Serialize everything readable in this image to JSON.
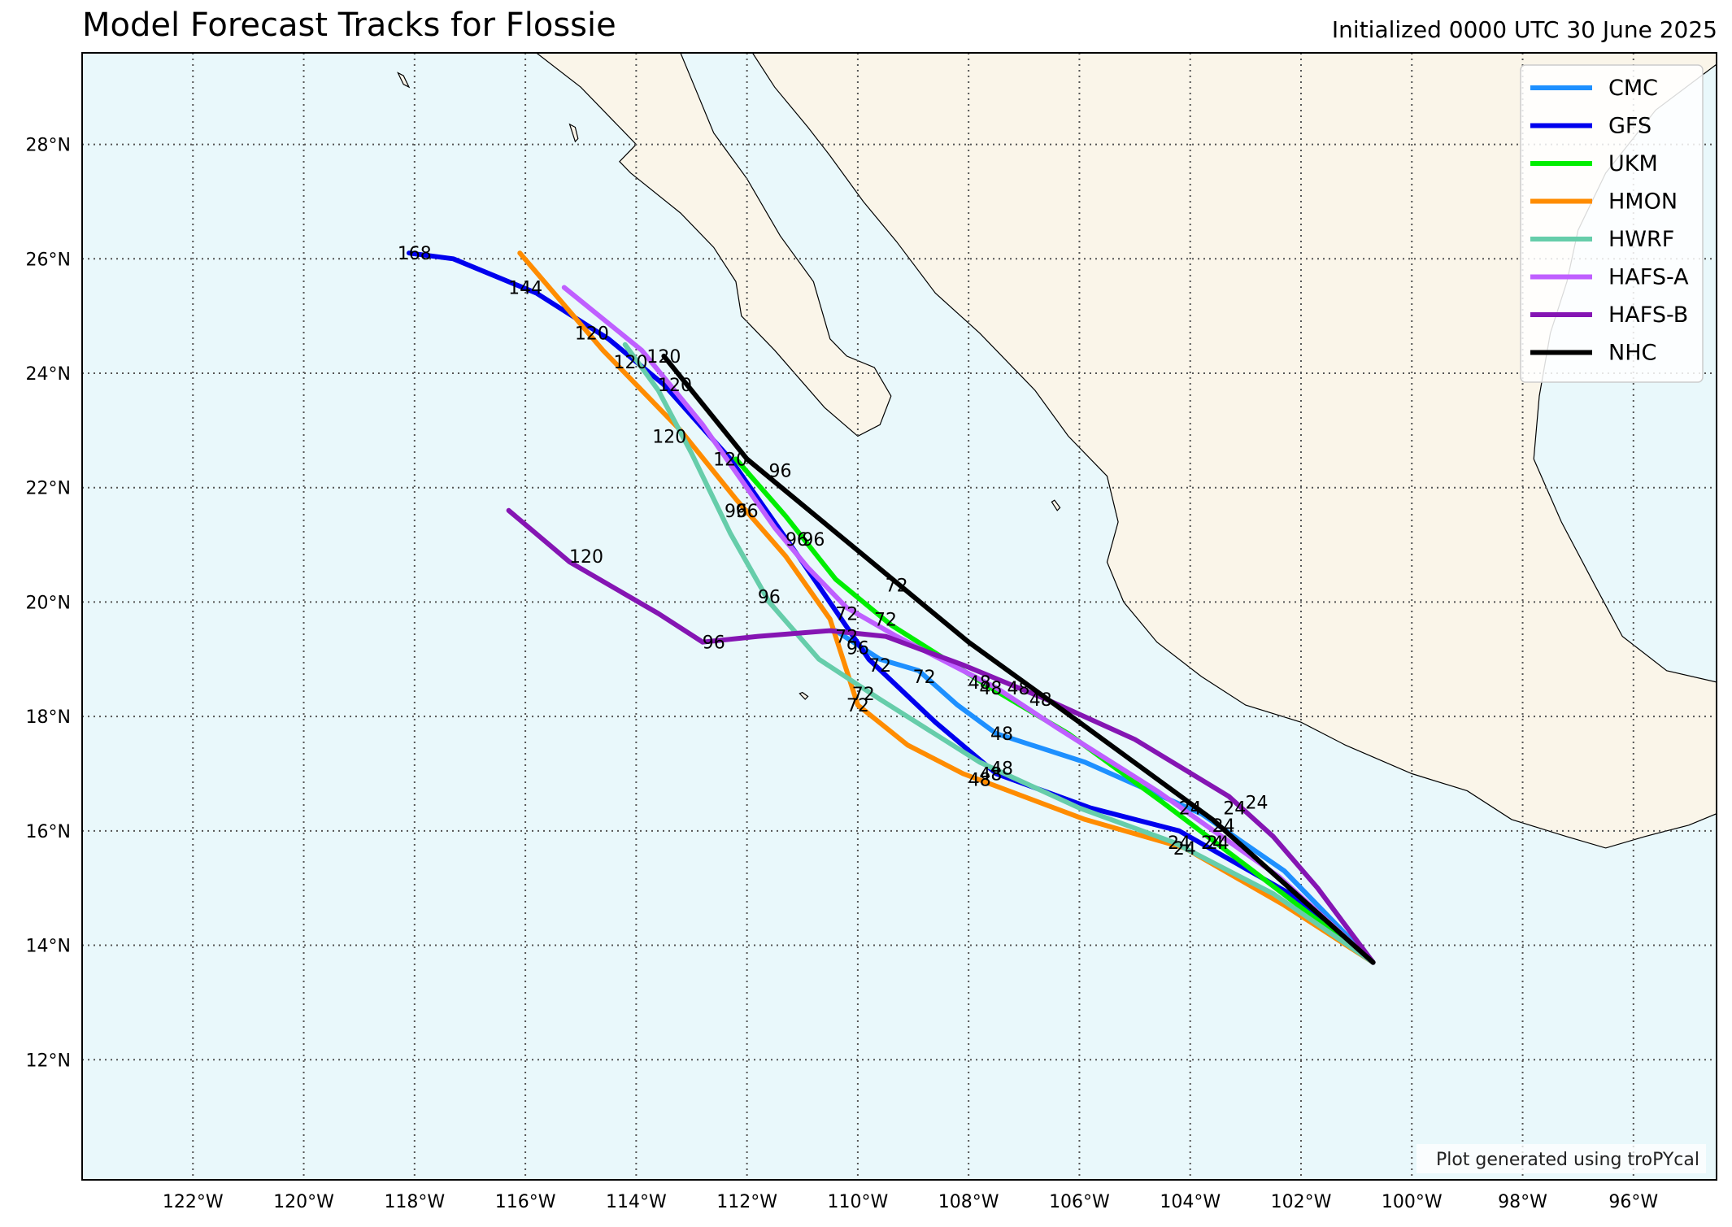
{
  "title": "Model Forecast Tracks for Flossie",
  "subtitle": "Initialized 0000 UTC 30 June 2025",
  "credit": "Plot generated using troPYcal",
  "colors": {
    "ocean": "#e9f8fb",
    "land": "#faf5e9",
    "grid": "#555555"
  },
  "map": {
    "lon_range": [
      -124.0,
      -94.5
    ],
    "lat_range": [
      9.9,
      29.6
    ],
    "lon_ticks": [
      {
        "value": -122,
        "label": "122°W"
      },
      {
        "value": -120,
        "label": "120°W"
      },
      {
        "value": -118,
        "label": "118°W"
      },
      {
        "value": -116,
        "label": "116°W"
      },
      {
        "value": -114,
        "label": "114°W"
      },
      {
        "value": -112,
        "label": "112°W"
      },
      {
        "value": -110,
        "label": "110°W"
      },
      {
        "value": -108,
        "label": "108°W"
      },
      {
        "value": -106,
        "label": "106°W"
      },
      {
        "value": -104,
        "label": "104°W"
      },
      {
        "value": -102,
        "label": "102°W"
      },
      {
        "value": -100,
        "label": "100°W"
      },
      {
        "value": -98,
        "label": "98°W"
      },
      {
        "value": -96,
        "label": "96°W"
      }
    ],
    "lat_ticks": [
      {
        "value": 12,
        "label": "12°N"
      },
      {
        "value": 14,
        "label": "14°N"
      },
      {
        "value": 16,
        "label": "16°N"
      },
      {
        "value": 18,
        "label": "18°N"
      },
      {
        "value": 20,
        "label": "20°N"
      },
      {
        "value": 22,
        "label": "22°N"
      },
      {
        "value": 24,
        "label": "24°N"
      },
      {
        "value": 26,
        "label": "26°N"
      },
      {
        "value": 28,
        "label": "28°N"
      }
    ],
    "legend_position": "top-right",
    "land_polygons": [
      [
        [
          -115.8,
          29.6
        ],
        [
          -115.0,
          29.0
        ],
        [
          -114.4,
          28.4
        ],
        [
          -114.0,
          28.0
        ],
        [
          -114.3,
          27.7
        ],
        [
          -114.1,
          27.5
        ],
        [
          -113.2,
          26.8
        ],
        [
          -112.6,
          26.2
        ],
        [
          -112.2,
          25.6
        ],
        [
          -112.1,
          25.0
        ],
        [
          -111.5,
          24.4
        ],
        [
          -110.6,
          23.4
        ],
        [
          -110.0,
          22.9
        ],
        [
          -109.6,
          23.1
        ],
        [
          -109.4,
          23.6
        ],
        [
          -109.7,
          24.1
        ],
        [
          -110.2,
          24.3
        ],
        [
          -110.5,
          24.6
        ],
        [
          -110.8,
          25.6
        ],
        [
          -111.4,
          26.4
        ],
        [
          -112.0,
          27.4
        ],
        [
          -112.6,
          28.2
        ],
        [
          -112.9,
          28.9
        ],
        [
          -113.2,
          29.6
        ]
      ],
      [
        [
          -111.9,
          29.6
        ],
        [
          -111.5,
          29.0
        ],
        [
          -110.9,
          28.3
        ],
        [
          -110.5,
          27.8
        ],
        [
          -109.9,
          27.0
        ],
        [
          -109.3,
          26.3
        ],
        [
          -108.6,
          25.4
        ],
        [
          -107.8,
          24.7
        ],
        [
          -106.8,
          23.7
        ],
        [
          -106.2,
          22.9
        ],
        [
          -105.5,
          22.2
        ],
        [
          -105.3,
          21.4
        ],
        [
          -105.5,
          20.7
        ],
        [
          -105.2,
          20.0
        ],
        [
          -104.6,
          19.3
        ],
        [
          -103.8,
          18.7
        ],
        [
          -103.0,
          18.2
        ],
        [
          -102.0,
          17.9
        ],
        [
          -101.2,
          17.5
        ],
        [
          -100.0,
          17.0
        ],
        [
          -99.0,
          16.7
        ],
        [
          -98.2,
          16.2
        ],
        [
          -97.2,
          15.9
        ],
        [
          -96.5,
          15.7
        ],
        [
          -95.8,
          15.9
        ],
        [
          -95.0,
          16.1
        ],
        [
          -94.5,
          16.3
        ],
        [
          -94.5,
          18.6
        ],
        [
          -95.4,
          18.8
        ],
        [
          -96.2,
          19.4
        ],
        [
          -96.7,
          20.3
        ],
        [
          -97.3,
          21.4
        ],
        [
          -97.8,
          22.5
        ],
        [
          -97.7,
          23.6
        ],
        [
          -97.5,
          24.7
        ],
        [
          -97.2,
          25.6
        ],
        [
          -97.0,
          26.5
        ],
        [
          -96.5,
          27.5
        ],
        [
          -95.6,
          28.6
        ],
        [
          -94.5,
          29.4
        ],
        [
          -94.5,
          29.6
        ]
      ]
    ],
    "islands": [
      [
        [
          -118.3,
          29.25
        ],
        [
          -118.2,
          29.05
        ],
        [
          -118.1,
          29.0
        ],
        [
          -118.2,
          29.2
        ]
      ],
      [
        [
          -115.2,
          28.35
        ],
        [
          -115.1,
          28.05
        ],
        [
          -115.05,
          28.1
        ],
        [
          -115.1,
          28.3
        ]
      ],
      [
        [
          -106.5,
          21.75
        ],
        [
          -106.4,
          21.6
        ],
        [
          -106.35,
          21.65
        ],
        [
          -106.45,
          21.78
        ]
      ],
      [
        [
          -111.05,
          18.4
        ],
        [
          -110.95,
          18.3
        ],
        [
          -110.9,
          18.35
        ],
        [
          -111.0,
          18.42
        ]
      ]
    ]
  },
  "legend": [
    {
      "name": "CMC",
      "color": "#1e90ff"
    },
    {
      "name": "GFS",
      "color": "#0000ee"
    },
    {
      "name": "UKM",
      "color": "#00ee00"
    },
    {
      "name": "HMON",
      "color": "#ff8c00"
    },
    {
      "name": "HWRF",
      "color": "#66cdaa"
    },
    {
      "name": "HAFS-A",
      "color": "#bf5fff"
    },
    {
      "name": "HAFS-B",
      "color": "#8515b3"
    },
    {
      "name": "NHC",
      "color": "#000000"
    }
  ],
  "chart_data": {
    "type": "map",
    "x_unit": "longitude (degrees, negative = W)",
    "y_unit": "latitude (degrees N)",
    "series": [
      {
        "name": "CMC",
        "color": "#1e90ff",
        "points": [
          [
            -100.7,
            13.7
          ],
          [
            -102.3,
            15.3
          ],
          [
            -103.8,
            16.3
          ],
          [
            -105.9,
            17.2
          ],
          [
            -107.5,
            17.7
          ],
          [
            -108.2,
            18.2
          ],
          [
            -108.9,
            18.8
          ],
          [
            -109.6,
            19.0
          ],
          [
            -110.4,
            19.5
          ]
        ],
        "labels": [
          {
            "text": "24",
            "lon": -103.6,
            "lat": 15.8
          },
          {
            "text": "48",
            "lon": -107.4,
            "lat": 17.7
          },
          {
            "text": "72",
            "lon": -108.8,
            "lat": 18.7
          },
          {
            "text": "96",
            "lon": -110.0,
            "lat": 19.2
          }
        ]
      },
      {
        "name": "GFS",
        "color": "#0000ee",
        "points": [
          [
            -100.7,
            13.7
          ],
          [
            -102.2,
            14.9
          ],
          [
            -104.2,
            16.0
          ],
          [
            -105.8,
            16.4
          ],
          [
            -107.5,
            17.0
          ],
          [
            -108.6,
            17.9
          ],
          [
            -109.8,
            19.0
          ],
          [
            -111.0,
            20.7
          ],
          [
            -112.3,
            22.5
          ],
          [
            -113.5,
            23.8
          ],
          [
            -114.5,
            24.6
          ],
          [
            -115.8,
            25.4
          ],
          [
            -117.3,
            26.0
          ],
          [
            -118.1,
            26.1
          ]
        ],
        "labels": [
          {
            "text": "24",
            "lon": -104.0,
            "lat": 16.4
          },
          {
            "text": "48",
            "lon": -107.4,
            "lat": 17.1
          },
          {
            "text": "72",
            "lon": -109.6,
            "lat": 18.9
          },
          {
            "text": "96",
            "lon": -111.1,
            "lat": 21.1
          },
          {
            "text": "120",
            "lon": -113.3,
            "lat": 23.8
          },
          {
            "text": "144",
            "lon": -116.0,
            "lat": 25.5
          },
          {
            "text": "168",
            "lon": -118.0,
            "lat": 26.1
          }
        ]
      },
      {
        "name": "UKM",
        "color": "#00ee00",
        "points": [
          [
            -100.7,
            13.7
          ],
          [
            -103.0,
            15.4
          ],
          [
            -104.5,
            16.5
          ],
          [
            -106.2,
            17.7
          ],
          [
            -107.6,
            18.5
          ],
          [
            -109.4,
            19.6
          ],
          [
            -110.4,
            20.4
          ],
          [
            -111.3,
            21.5
          ],
          [
            -112.2,
            22.5
          ]
        ],
        "labels": [
          {
            "text": "24",
            "lon": -103.5,
            "lat": 15.8
          },
          {
            "text": "48",
            "lon": -107.6,
            "lat": 18.5
          },
          {
            "text": "72",
            "lon": -109.5,
            "lat": 19.7
          },
          {
            "text": "96",
            "lon": -110.8,
            "lat": 21.1
          },
          {
            "text": "120",
            "lon": -112.3,
            "lat": 22.5
          }
        ]
      },
      {
        "name": "HMON",
        "color": "#ff8c00",
        "points": [
          [
            -100.7,
            13.7
          ],
          [
            -102.3,
            14.7
          ],
          [
            -104.1,
            15.7
          ],
          [
            -105.9,
            16.2
          ],
          [
            -108.1,
            17.0
          ],
          [
            -109.1,
            17.5
          ],
          [
            -110.0,
            18.2
          ],
          [
            -110.5,
            19.7
          ],
          [
            -111.3,
            20.8
          ],
          [
            -112.2,
            21.8
          ],
          [
            -113.2,
            23.0
          ],
          [
            -114.6,
            24.4
          ],
          [
            -116.1,
            26.1
          ]
        ],
        "labels": [
          {
            "text": "24",
            "lon": -104.1,
            "lat": 15.7
          },
          {
            "text": "48",
            "lon": -107.8,
            "lat": 16.9
          },
          {
            "text": "72",
            "lon": -110.0,
            "lat": 18.2
          },
          {
            "text": "96",
            "lon": -112.2,
            "lat": 21.6
          },
          {
            "text": "120",
            "lon": -113.4,
            "lat": 22.9
          }
        ]
      },
      {
        "name": "HWRF",
        "color": "#66cdaa",
        "points": [
          [
            -100.7,
            13.7
          ],
          [
            -102.5,
            14.9
          ],
          [
            -104.3,
            15.8
          ],
          [
            -106.0,
            16.4
          ],
          [
            -107.8,
            17.2
          ],
          [
            -109.6,
            18.3
          ],
          [
            -110.7,
            19.0
          ],
          [
            -111.6,
            20.0
          ],
          [
            -112.3,
            21.2
          ],
          [
            -113.0,
            22.6
          ],
          [
            -113.6,
            23.7
          ],
          [
            -114.2,
            24.5
          ]
        ],
        "labels": [
          {
            "text": "24",
            "lon": -104.2,
            "lat": 15.8
          },
          {
            "text": "48",
            "lon": -107.6,
            "lat": 17.0
          },
          {
            "text": "72",
            "lon": -109.9,
            "lat": 18.4
          },
          {
            "text": "96",
            "lon": -111.6,
            "lat": 20.1
          },
          {
            "text": "120",
            "lon": -114.1,
            "lat": 24.2
          }
        ]
      },
      {
        "name": "HAFS-A",
        "color": "#bf5fff",
        "points": [
          [
            -100.7,
            13.7
          ],
          [
            -102.4,
            15.2
          ],
          [
            -104.6,
            16.7
          ],
          [
            -106.4,
            17.8
          ],
          [
            -107.5,
            18.5
          ],
          [
            -109.3,
            19.4
          ],
          [
            -110.2,
            19.9
          ],
          [
            -110.9,
            20.6
          ],
          [
            -111.5,
            21.3
          ],
          [
            -112.8,
            23.1
          ],
          [
            -113.9,
            24.4
          ],
          [
            -115.3,
            25.5
          ]
        ],
        "labels": [
          {
            "text": "24",
            "lon": -103.2,
            "lat": 16.4
          },
          {
            "text": "48",
            "lon": -107.8,
            "lat": 18.6
          },
          {
            "text": "72",
            "lon": -110.2,
            "lat": 19.8
          },
          {
            "text": "96",
            "lon": -112.0,
            "lat": 21.6
          },
          {
            "text": "120",
            "lon": -114.8,
            "lat": 24.7
          }
        ]
      },
      {
        "name": "HAFS-B",
        "color": "#8515b3",
        "points": [
          [
            -100.7,
            13.7
          ],
          [
            -101.7,
            15.0
          ],
          [
            -102.5,
            15.9
          ],
          [
            -103.3,
            16.6
          ],
          [
            -105.0,
            17.6
          ],
          [
            -106.6,
            18.3
          ],
          [
            -108.1,
            18.9
          ],
          [
            -109.5,
            19.4
          ],
          [
            -110.5,
            19.5
          ],
          [
            -111.8,
            19.4
          ],
          [
            -112.8,
            19.3
          ],
          [
            -113.6,
            19.8
          ],
          [
            -115.2,
            20.7
          ],
          [
            -116.3,
            21.6
          ]
        ],
        "labels": [
          {
            "text": "24",
            "lon": -102.8,
            "lat": 16.5
          },
          {
            "text": "48",
            "lon": -107.1,
            "lat": 18.5
          },
          {
            "text": "72",
            "lon": -110.2,
            "lat": 19.4
          },
          {
            "text": "96",
            "lon": -112.6,
            "lat": 19.3
          },
          {
            "text": "120",
            "lon": -114.9,
            "lat": 20.8
          }
        ]
      },
      {
        "name": "NHC",
        "color": "#000000",
        "points": [
          [
            -100.7,
            13.7
          ],
          [
            -103.6,
            16.2
          ],
          [
            -106.0,
            17.9
          ],
          [
            -108.0,
            19.3
          ],
          [
            -110.0,
            20.9
          ],
          [
            -112.0,
            22.5
          ],
          [
            -113.5,
            24.3
          ]
        ],
        "labels": [
          {
            "text": "24",
            "lon": -103.4,
            "lat": 16.1
          },
          {
            "text": "48",
            "lon": -106.7,
            "lat": 18.3
          },
          {
            "text": "72",
            "lon": -109.3,
            "lat": 20.3
          },
          {
            "text": "96",
            "lon": -111.4,
            "lat": 22.3
          },
          {
            "text": "120",
            "lon": -113.5,
            "lat": 24.3
          }
        ]
      }
    ]
  }
}
